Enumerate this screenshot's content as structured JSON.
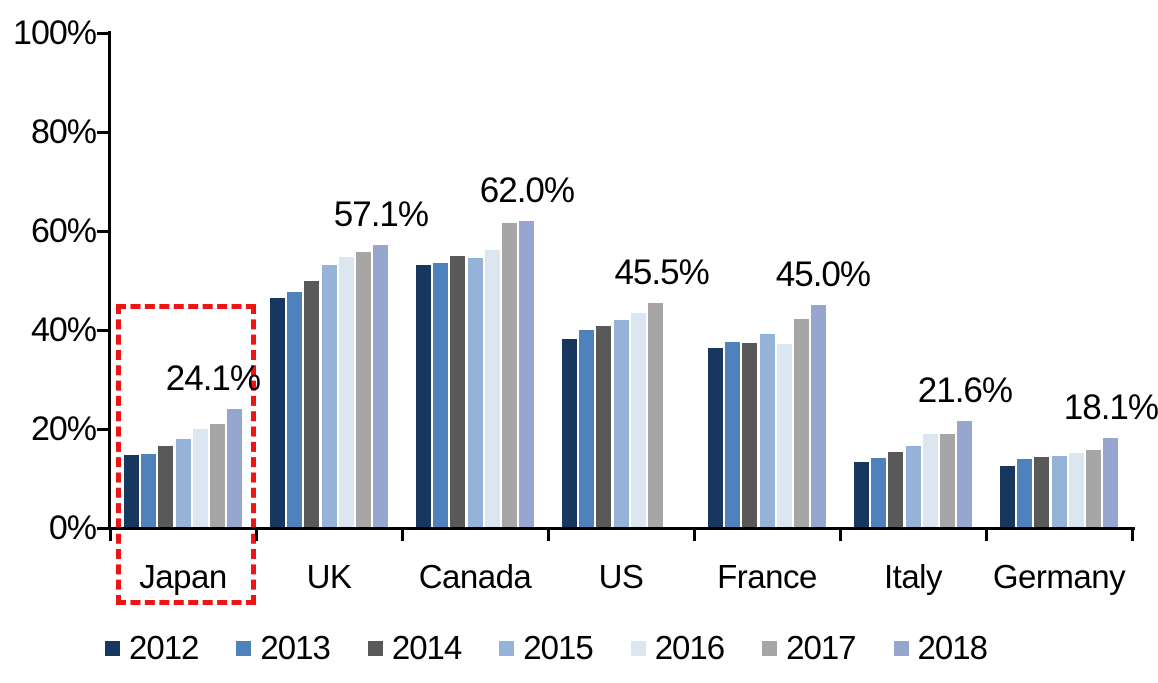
{
  "chart_data": {
    "type": "bar",
    "categories": [
      "Japan",
      "UK",
      "Canada",
      "US",
      "France",
      "Italy",
      "Germany"
    ],
    "series": [
      {
        "name": "2012",
        "color": "#17375E",
        "values": [
          14.8,
          46.4,
          53.1,
          38.2,
          36.4,
          13.3,
          12.5
        ]
      },
      {
        "name": "2013",
        "color": "#4F81BD",
        "values": [
          14.9,
          47.7,
          53.5,
          40.1,
          37.6,
          14.1,
          13.9
        ]
      },
      {
        "name": "2014",
        "color": "#595959",
        "values": [
          16.5,
          49.9,
          54.9,
          40.9,
          37.4,
          15.3,
          14.3
        ]
      },
      {
        "name": "2015",
        "color": "#95B3D7",
        "values": [
          18.0,
          53.1,
          54.6,
          42.1,
          39.1,
          16.6,
          14.6
        ]
      },
      {
        "name": "2016",
        "color": "#DCE6F1",
        "values": [
          19.9,
          54.7,
          56.2,
          43.5,
          37.2,
          18.9,
          15.2
        ]
      },
      {
        "name": "2017",
        "color": "#A6A6A6",
        "values": [
          21.0,
          55.8,
          61.7,
          45.5,
          42.3,
          19.0,
          15.7
        ]
      },
      {
        "name": "2018",
        "color": "#96A6CF",
        "values": [
          24.1,
          57.1,
          62.0,
          null,
          45.0,
          21.6,
          18.1
        ]
      }
    ],
    "value_labels": [
      {
        "category": "Japan",
        "series": "2018",
        "text": "24.1%",
        "dx": -22
      },
      {
        "category": "UK",
        "series": "2018",
        "text": "57.1%",
        "dx": 0
      },
      {
        "category": "Canada",
        "series": "2018",
        "text": "62.0%",
        "dx": 0
      },
      {
        "category": "US",
        "series": "2017",
        "text": "45.5%",
        "dx": 6
      },
      {
        "category": "France",
        "series": "2018",
        "text": "45.0%",
        "dx": 4
      },
      {
        "category": "Italy",
        "series": "2018",
        "text": "21.6%",
        "dx": 0
      },
      {
        "category": "Germany",
        "series": "2018",
        "text": "18.1%",
        "dx": 0
      }
    ],
    "yticks": [
      {
        "value": 0,
        "label": "0%"
      },
      {
        "value": 20,
        "label": "20%"
      },
      {
        "value": 40,
        "label": "40%"
      },
      {
        "value": 60,
        "label": "60%"
      },
      {
        "value": 80,
        "label": "80%"
      },
      {
        "value": 100,
        "label": "100%"
      }
    ],
    "ylim": [
      0,
      100
    ],
    "xlabel": "",
    "ylabel": "",
    "grid": false,
    "legend_position": "bottom",
    "legend_entries": [
      "2012",
      "2013",
      "2014",
      "2015",
      "2016",
      "2017",
      "2018"
    ],
    "axis_color": "#000000",
    "annotation": {
      "type": "dashed-box",
      "target_category": "Japan",
      "color": "#EE1414"
    }
  }
}
